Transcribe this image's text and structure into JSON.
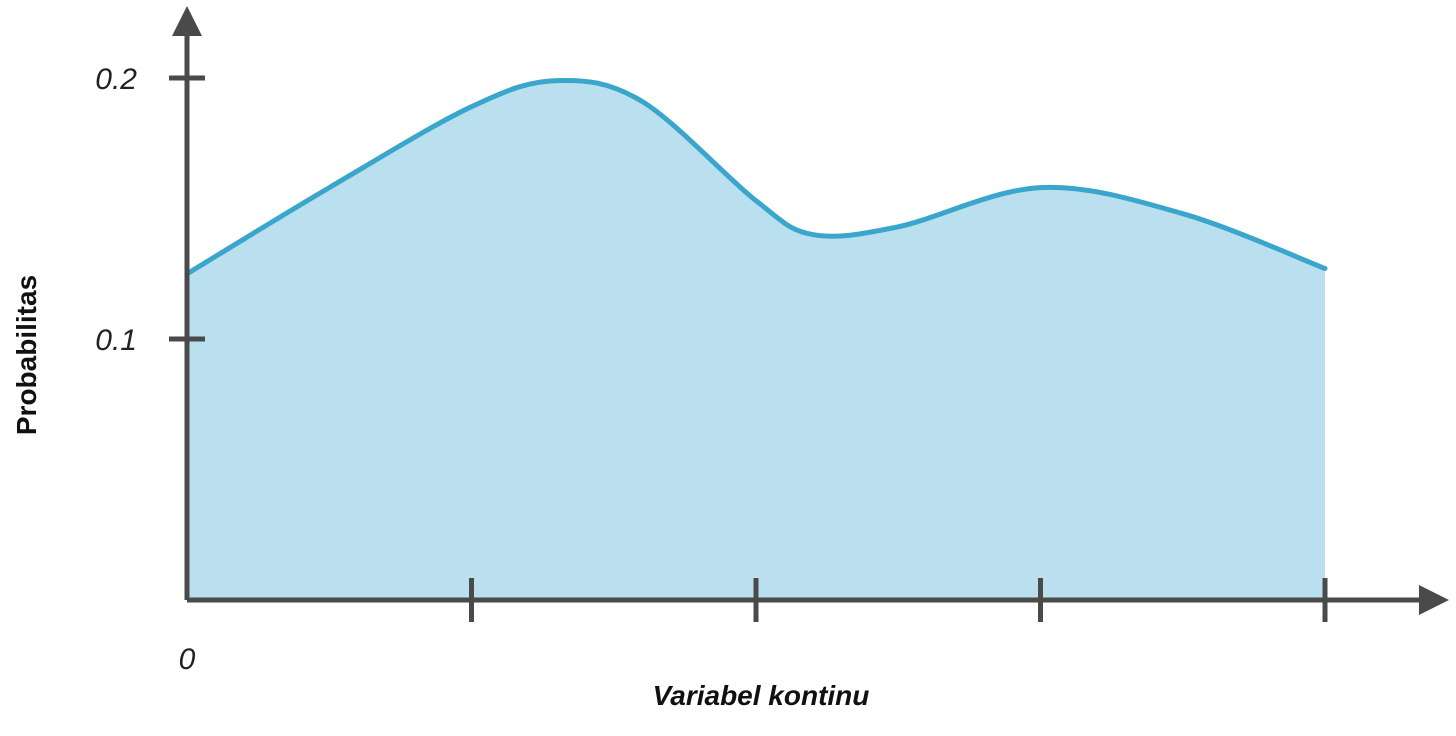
{
  "chart_data": {
    "type": "area",
    "title": "",
    "xlabel": "Variabel kontinu",
    "ylabel": "Probabilitas",
    "origin_label": "0",
    "y_ticks": [
      {
        "value": 0.1,
        "label": "0.1"
      },
      {
        "value": 0.2,
        "label": "0.2"
      }
    ],
    "x_ticks": [
      1,
      2,
      3,
      4
    ],
    "xlim": [
      0,
      4
    ],
    "ylim": [
      0,
      0.237
    ],
    "grid": false,
    "legend": "none",
    "x": [
      0,
      0.5,
      1,
      1.3,
      1.6,
      2,
      2.2,
      2.5,
      3,
      3.5,
      4
    ],
    "y": [
      0.125,
      0.158,
      0.189,
      0.199,
      0.191,
      0.153,
      0.14,
      0.143,
      0.158,
      0.148,
      0.127
    ],
    "colors": {
      "line": "#3AA6CC",
      "fill": "#BADFEF",
      "axis": "#4A4A4A"
    }
  }
}
